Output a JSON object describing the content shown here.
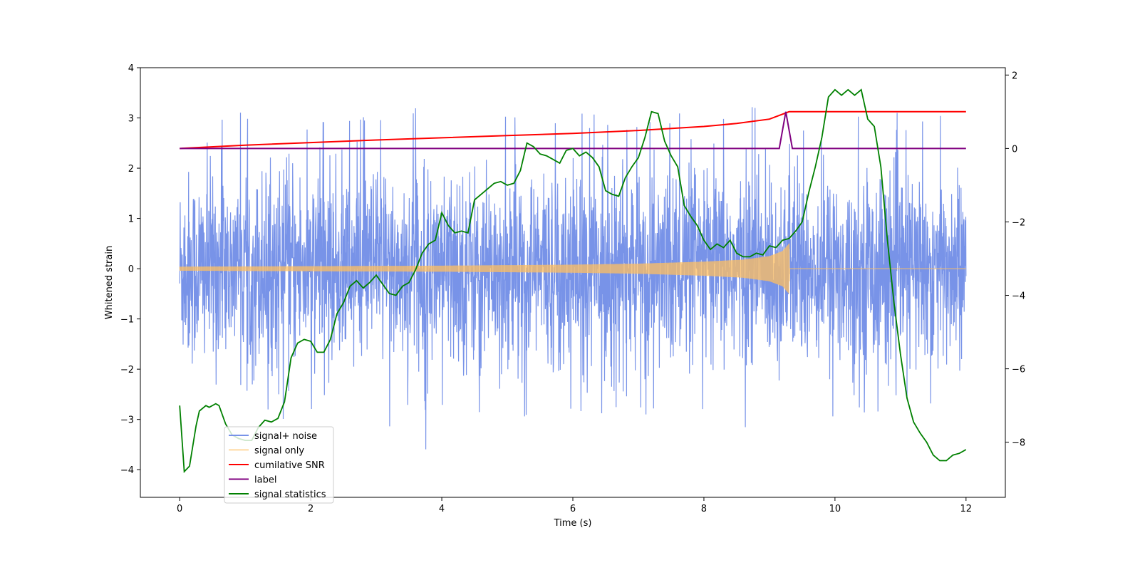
{
  "chart_data": {
    "type": "line",
    "title": "",
    "xlabel": "Time (s)",
    "ylabel": "Whitened strain",
    "y2label": "",
    "xlim": [
      -0.6,
      12.6
    ],
    "ylim": [
      -4.55,
      4.0
    ],
    "y2lim": [
      -9.5,
      2.2
    ],
    "xticks": [
      "0",
      "2",
      "4",
      "6",
      "8",
      "10",
      "12"
    ],
    "xtick_values": [
      0,
      2,
      4,
      6,
      8,
      10,
      12
    ],
    "yticks": [
      "4",
      "3",
      "2",
      "1",
      "0",
      "−1",
      "−2",
      "−3",
      "−4"
    ],
    "ytick_values": [
      4,
      3,
      2,
      1,
      0,
      -1,
      -2,
      -3,
      -4
    ],
    "y2ticks": [
      "2",
      "0",
      "−2",
      "−4",
      "−6",
      "−8"
    ],
    "y2tick_values": [
      2,
      0,
      -2,
      -4,
      -6,
      -8
    ],
    "grid": false,
    "legend_position": "lower-left",
    "colors": {
      "signal_noise": "#7893e8",
      "signal_only": "#ffbf60",
      "cumulative_snr": "#ff0000",
      "label": "#800080",
      "signal_statistics": "#008000"
    },
    "series": [
      {
        "name": "signal+ noise",
        "axis": "left",
        "note_style": "dense noise band",
        "envelope_upper": [
          [
            0,
            2.0
          ],
          [
            0.5,
            3.1
          ],
          [
            1,
            3.3
          ],
          [
            2,
            3.0
          ],
          [
            3,
            3.2
          ],
          [
            4,
            3.2
          ],
          [
            4.35,
            3.6
          ],
          [
            5,
            3.0
          ],
          [
            6,
            3.1
          ],
          [
            7,
            3.0
          ],
          [
            8,
            3.2
          ],
          [
            8.8,
            3.4
          ],
          [
            9,
            3.0
          ],
          [
            10,
            3.1
          ],
          [
            11,
            3.1
          ],
          [
            12,
            3.0
          ]
        ],
        "envelope_lower": [
          [
            0,
            -2.2
          ],
          [
            0.5,
            -3.8
          ],
          [
            1,
            -3.0
          ],
          [
            2,
            -3.0
          ],
          [
            3,
            -3.0
          ],
          [
            3.6,
            -4.15
          ],
          [
            4,
            -3.0
          ],
          [
            5,
            -3.2
          ],
          [
            6,
            -3.1
          ],
          [
            7,
            -3.0
          ],
          [
            8,
            -3.0
          ],
          [
            9.3,
            -3.4
          ],
          [
            10,
            -3.0
          ],
          [
            11,
            -3.0
          ],
          [
            12,
            -2.6
          ]
        ],
        "typical_amplitude": 2.2
      },
      {
        "name": "signal only",
        "axis": "left",
        "chirp_envelope": [
          [
            0,
            0.04
          ],
          [
            2,
            0.05
          ],
          [
            4,
            0.06
          ],
          [
            6,
            0.08
          ],
          [
            7,
            0.1
          ],
          [
            8,
            0.14
          ],
          [
            8.6,
            0.18
          ],
          [
            9,
            0.25
          ],
          [
            9.2,
            0.35
          ],
          [
            9.3,
            0.5
          ],
          [
            9.31,
            0.0
          ],
          [
            12,
            0.0
          ]
        ]
      },
      {
        "name": "cumilative SNR",
        "axis": "right",
        "points": [
          [
            0,
            0.0
          ],
          [
            1,
            0.09
          ],
          [
            2,
            0.16
          ],
          [
            3,
            0.23
          ],
          [
            4,
            0.29
          ],
          [
            5,
            0.35
          ],
          [
            6,
            0.41
          ],
          [
            7,
            0.49
          ],
          [
            8,
            0.6
          ],
          [
            8.5,
            0.68
          ],
          [
            9,
            0.8
          ],
          [
            9.3,
            1.0
          ],
          [
            12,
            1.0
          ]
        ]
      },
      {
        "name": "label",
        "axis": "right",
        "points": [
          [
            0,
            0
          ],
          [
            9.15,
            0
          ],
          [
            9.25,
            1.0
          ],
          [
            9.35,
            0
          ],
          [
            12,
            0
          ]
        ]
      },
      {
        "name": "signal statistics",
        "axis": "right",
        "points": [
          [
            0,
            -7.0
          ],
          [
            0.07,
            -8.8
          ],
          [
            0.15,
            -8.65
          ],
          [
            0.25,
            -7.55
          ],
          [
            0.3,
            -7.15
          ],
          [
            0.4,
            -7.0
          ],
          [
            0.45,
            -7.05
          ],
          [
            0.55,
            -6.95
          ],
          [
            0.6,
            -7.0
          ],
          [
            0.7,
            -7.5
          ],
          [
            0.8,
            -7.8
          ],
          [
            0.9,
            -7.9
          ],
          [
            1.0,
            -7.95
          ],
          [
            1.1,
            -7.95
          ],
          [
            1.2,
            -7.6
          ],
          [
            1.3,
            -7.4
          ],
          [
            1.4,
            -7.45
          ],
          [
            1.5,
            -7.35
          ],
          [
            1.6,
            -6.9
          ],
          [
            1.7,
            -5.7
          ],
          [
            1.8,
            -5.3
          ],
          [
            1.9,
            -5.2
          ],
          [
            2.0,
            -5.25
          ],
          [
            2.1,
            -5.55
          ],
          [
            2.2,
            -5.55
          ],
          [
            2.3,
            -5.2
          ],
          [
            2.4,
            -4.5
          ],
          [
            2.5,
            -4.2
          ],
          [
            2.6,
            -3.75
          ],
          [
            2.7,
            -3.6
          ],
          [
            2.8,
            -3.8
          ],
          [
            2.9,
            -3.65
          ],
          [
            3.0,
            -3.45
          ],
          [
            3.1,
            -3.7
          ],
          [
            3.2,
            -3.95
          ],
          [
            3.3,
            -4.0
          ],
          [
            3.4,
            -3.75
          ],
          [
            3.5,
            -3.65
          ],
          [
            3.6,
            -3.3
          ],
          [
            3.7,
            -2.85
          ],
          [
            3.8,
            -2.6
          ],
          [
            3.9,
            -2.5
          ],
          [
            4.0,
            -1.75
          ],
          [
            4.1,
            -2.1
          ],
          [
            4.2,
            -2.3
          ],
          [
            4.3,
            -2.25
          ],
          [
            4.4,
            -2.3
          ],
          [
            4.5,
            -1.4
          ],
          [
            4.6,
            -1.25
          ],
          [
            4.7,
            -1.1
          ],
          [
            4.8,
            -0.95
          ],
          [
            4.9,
            -0.9
          ],
          [
            5.0,
            -1.0
          ],
          [
            5.1,
            -0.95
          ],
          [
            5.2,
            -0.6
          ],
          [
            5.3,
            0.15
          ],
          [
            5.4,
            0.05
          ],
          [
            5.5,
            -0.15
          ],
          [
            5.6,
            -0.2
          ],
          [
            5.7,
            -0.3
          ],
          [
            5.8,
            -0.4
          ],
          [
            5.9,
            -0.05
          ],
          [
            6.0,
            0.0
          ],
          [
            6.1,
            -0.2
          ],
          [
            6.2,
            -0.1
          ],
          [
            6.3,
            -0.25
          ],
          [
            6.4,
            -0.5
          ],
          [
            6.5,
            -1.15
          ],
          [
            6.6,
            -1.25
          ],
          [
            6.7,
            -1.3
          ],
          [
            6.8,
            -0.8
          ],
          [
            6.9,
            -0.5
          ],
          [
            7.0,
            -0.25
          ],
          [
            7.1,
            0.3
          ],
          [
            7.2,
            1.0
          ],
          [
            7.3,
            0.95
          ],
          [
            7.4,
            0.2
          ],
          [
            7.5,
            -0.2
          ],
          [
            7.6,
            -0.5
          ],
          [
            7.7,
            -1.55
          ],
          [
            7.8,
            -1.85
          ],
          [
            7.9,
            -2.1
          ],
          [
            8.0,
            -2.5
          ],
          [
            8.1,
            -2.75
          ],
          [
            8.2,
            -2.6
          ],
          [
            8.3,
            -2.7
          ],
          [
            8.4,
            -2.5
          ],
          [
            8.5,
            -2.85
          ],
          [
            8.6,
            -2.95
          ],
          [
            8.7,
            -2.95
          ],
          [
            8.8,
            -2.85
          ],
          [
            8.9,
            -2.9
          ],
          [
            9.0,
            -2.65
          ],
          [
            9.1,
            -2.7
          ],
          [
            9.2,
            -2.5
          ],
          [
            9.3,
            -2.45
          ],
          [
            9.4,
            -2.25
          ],
          [
            9.5,
            -2.0
          ],
          [
            9.6,
            -1.2
          ],
          [
            9.7,
            -0.5
          ],
          [
            9.8,
            0.3
          ],
          [
            9.9,
            1.4
          ],
          [
            10.0,
            1.6
          ],
          [
            10.1,
            1.45
          ],
          [
            10.2,
            1.6
          ],
          [
            10.3,
            1.45
          ],
          [
            10.4,
            1.6
          ],
          [
            10.5,
            0.8
          ],
          [
            10.6,
            0.6
          ],
          [
            10.7,
            -0.5
          ],
          [
            10.8,
            -2.5
          ],
          [
            10.9,
            -4.2
          ],
          [
            11.0,
            -5.6
          ],
          [
            11.1,
            -6.8
          ],
          [
            11.2,
            -7.45
          ],
          [
            11.3,
            -7.75
          ],
          [
            11.4,
            -8.0
          ],
          [
            11.5,
            -8.35
          ],
          [
            11.6,
            -8.5
          ],
          [
            11.7,
            -8.5
          ],
          [
            11.8,
            -8.35
          ],
          [
            11.9,
            -8.3
          ],
          [
            12.0,
            -8.2
          ]
        ]
      }
    ]
  }
}
